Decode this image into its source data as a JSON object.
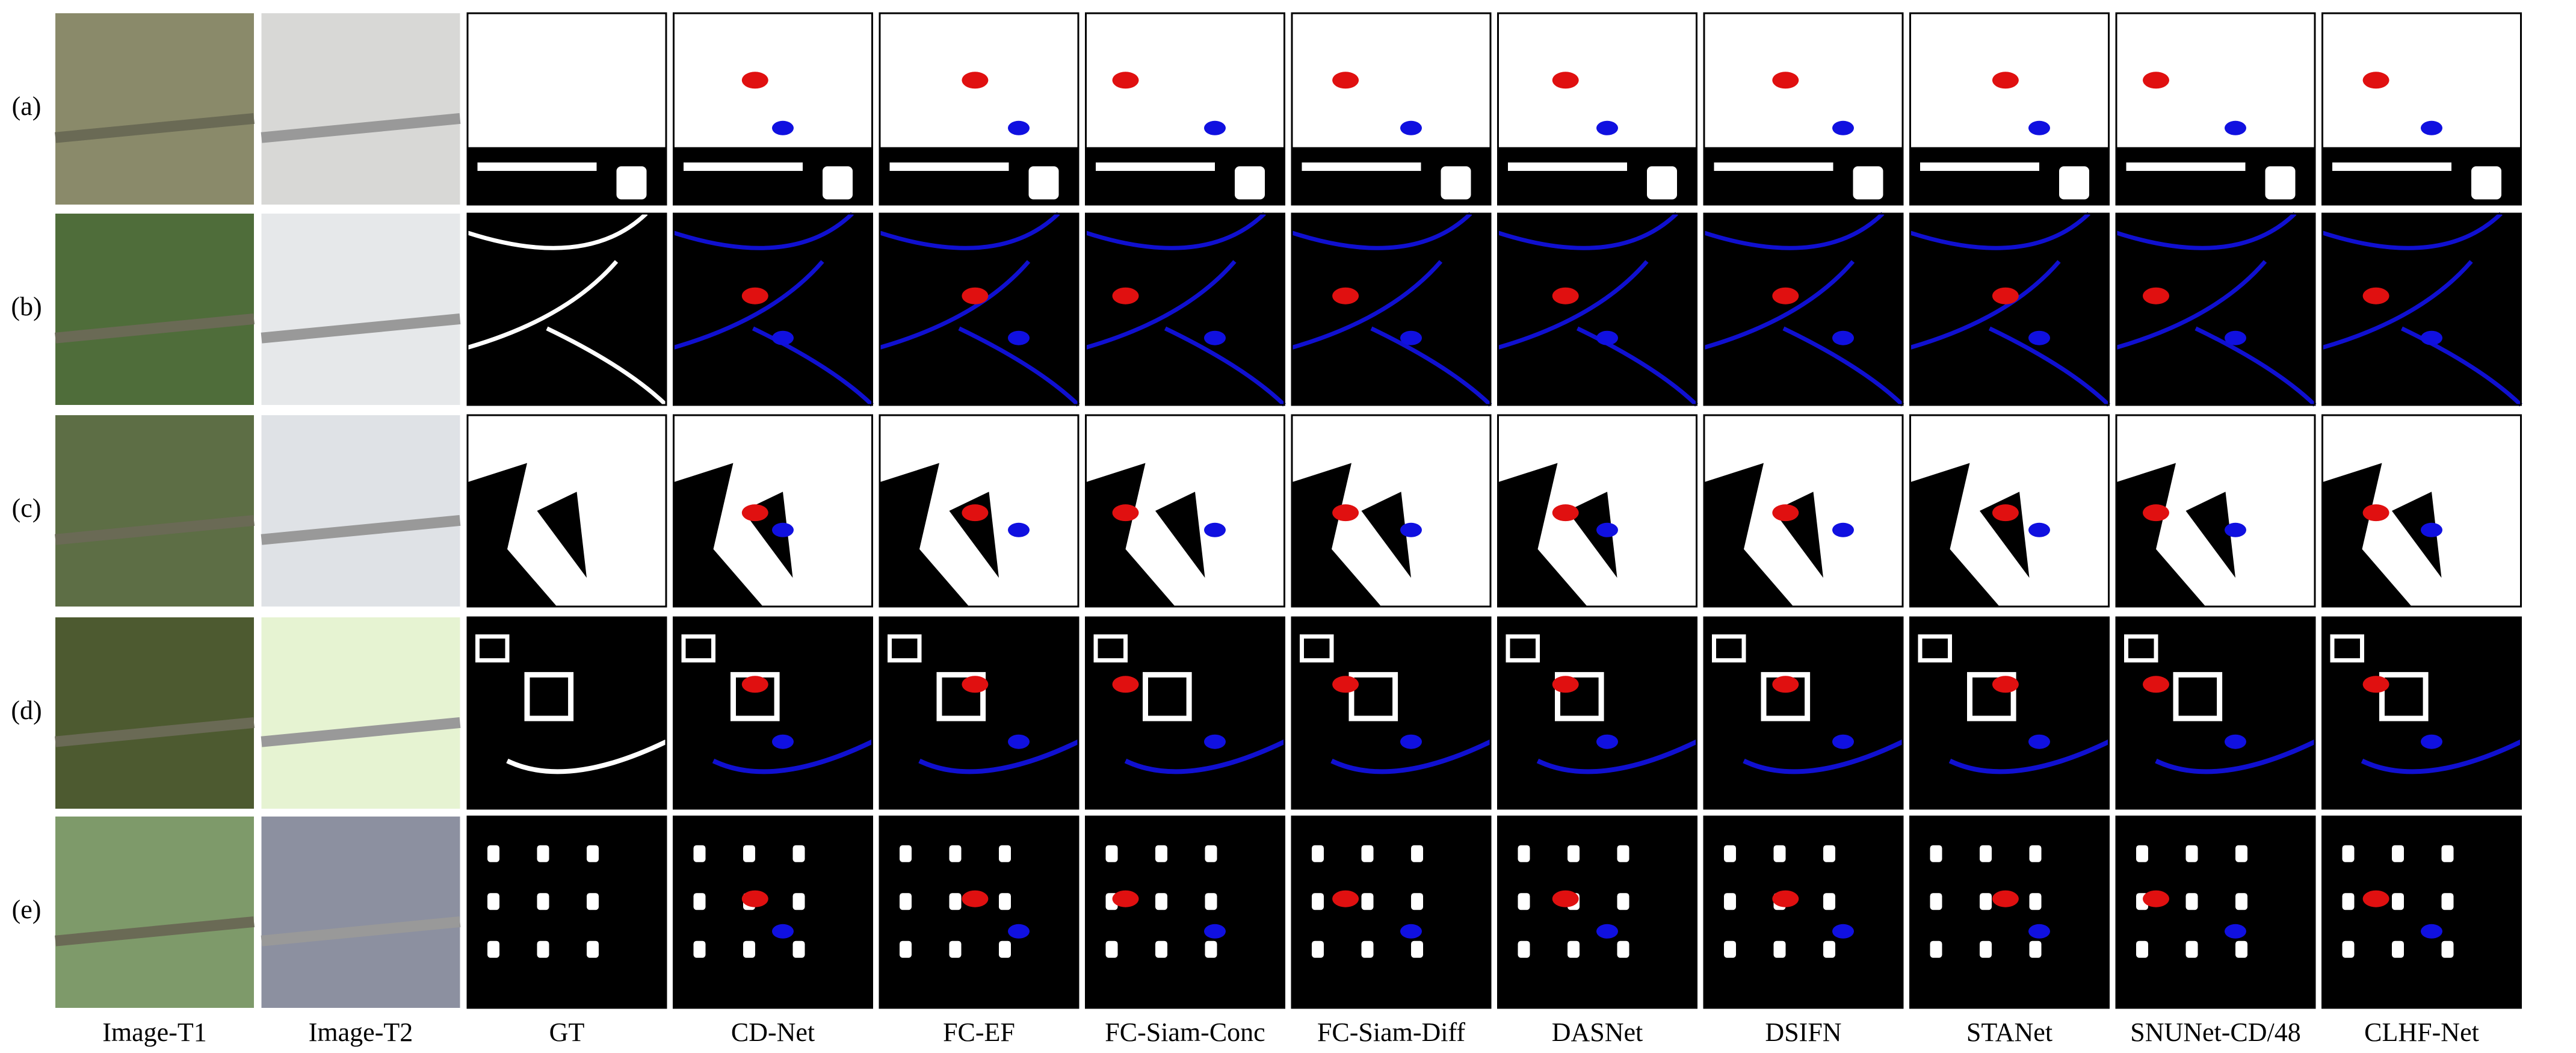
{
  "figure": {
    "row_labels": [
      "(a)",
      "(b)",
      "(c)",
      "(d)",
      "(e)"
    ],
    "column_labels": [
      "Image-T1",
      "Image-T2",
      "GT",
      "CD-Net",
      "FC-EF",
      "FC-Siam-Conc",
      "FC-Siam-Diff",
      "DASNet",
      "DSIFN",
      "STANet",
      "SNUNet-CD/48",
      "CLHF-Net"
    ]
  }
}
